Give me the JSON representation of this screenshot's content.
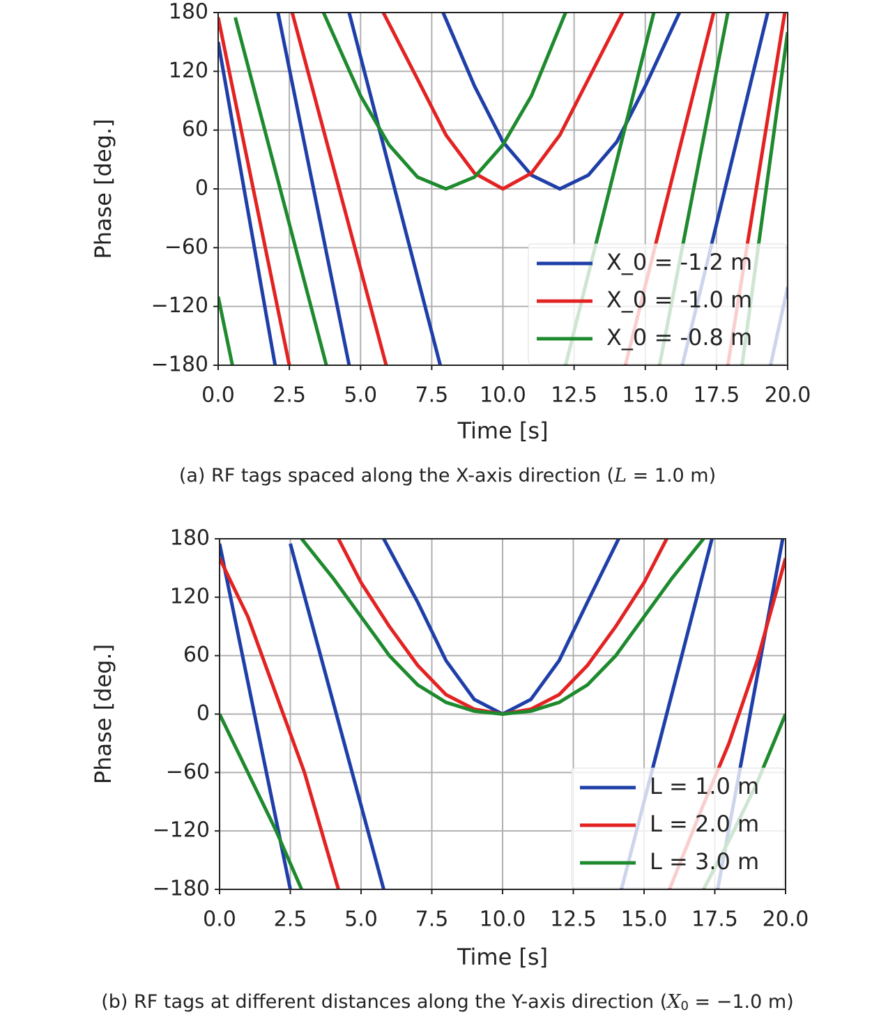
{
  "chart_data": [
    {
      "type": "line",
      "xlabel": "Time [s]",
      "ylabel": "Phase [deg.]",
      "caption": [
        "(a) RF tags spaced along the X-axis direction (",
        "L",
        " = 1.0 m)"
      ],
      "xlim": [
        0,
        20
      ],
      "ylim": [
        -180,
        180
      ],
      "xticks": [
        {
          "value": 0,
          "label": "0.0"
        },
        2.5,
        {
          "value": 5,
          "label": "5.0"
        },
        7.5,
        {
          "value": 10,
          "label": "10.0"
        },
        12.5,
        {
          "value": 15,
          "label": "15.0"
        },
        17.5,
        {
          "value": 20,
          "label": "20.0"
        }
      ],
      "yticks": [
        {
          "value": -180,
          "label": "−180"
        },
        {
          "value": -120,
          "label": "−120"
        },
        {
          "value": -60,
          "label": "−60"
        },
        0,
        60,
        120,
        180
      ],
      "grid": true,
      "legend": "lower right",
      "series": [
        {
          "name": "X_0 = -1.2 m",
          "color": "#1f3fa8",
          "x": [
            0,
            2.0,
            null,
            2.1,
            4.6,
            null,
            4.6,
            7.8,
            null,
            7.9,
            9,
            10,
            11,
            12,
            13,
            14,
            15,
            16.2,
            null,
            16.3,
            19.3,
            null,
            19.4,
            20
          ],
          "values": [
            150,
            -180,
            null,
            180,
            -180,
            null,
            180,
            -180,
            null,
            180,
            105,
            48,
            14,
            0,
            14,
            48,
            105,
            180,
            null,
            -180,
            180,
            null,
            -180,
            -100
          ]
        },
        {
          "name": "X_0 = -1.0 m",
          "color": "#e32222",
          "x": [
            0,
            2.5,
            null,
            2.6,
            5.9,
            null,
            5.8,
            7,
            8,
            9,
            10,
            11,
            12,
            13,
            14.2,
            null,
            14.3,
            17.4,
            null,
            17.9,
            19.9
          ],
          "values": [
            175,
            -180,
            null,
            180,
            -180,
            null,
            180,
            112,
            55,
            16,
            0,
            16,
            55,
            112,
            180,
            null,
            -180,
            180,
            null,
            -180,
            180
          ]
        },
        {
          "name": "X_0 = -0.8 m",
          "color": "#1e8a2e",
          "x": [
            0,
            0.5,
            null,
            0.6,
            3.8,
            null,
            3.7,
            5,
            6,
            7,
            8,
            9,
            10,
            11,
            12.2,
            null,
            12.2,
            15.3,
            null,
            15.5,
            17.9,
            null,
            18.4,
            20
          ],
          "values": [
            -110,
            -180,
            null,
            175,
            -180,
            null,
            180,
            95,
            45,
            12,
            0,
            12,
            45,
            95,
            180,
            null,
            -180,
            180,
            null,
            -180,
            180,
            null,
            -180,
            160
          ]
        }
      ]
    },
    {
      "type": "line",
      "xlabel": "Time [s]",
      "ylabel": "Phase [deg.]",
      "caption": [
        "(b) RF tags at different distances along the Y-axis direction (",
        "X",
        "0",
        " = −1.0 m)"
      ],
      "xlim": [
        0,
        20
      ],
      "ylim": [
        -180,
        180
      ],
      "xticks": [
        {
          "value": 0,
          "label": "0.0"
        },
        2.5,
        {
          "value": 5,
          "label": "5.0"
        },
        7.5,
        {
          "value": 10,
          "label": "10.0"
        },
        12.5,
        {
          "value": 15,
          "label": "15.0"
        },
        17.5,
        {
          "value": 20,
          "label": "20.0"
        }
      ],
      "yticks": [
        {
          "value": -180,
          "label": "−180"
        },
        {
          "value": -120,
          "label": "−120"
        },
        {
          "value": -60,
          "label": "−60"
        },
        0,
        60,
        120,
        180
      ],
      "grid": true,
      "legend": "lower right",
      "series": [
        {
          "name": "L = 1.0 m",
          "color": "#1f3fa8",
          "x": [
            0,
            2.5,
            null,
            2.5,
            5.8,
            null,
            5.8,
            7,
            8,
            9,
            10,
            11,
            12,
            13,
            14.1,
            null,
            14.2,
            17.4,
            null,
            17.6,
            19.9
          ],
          "values": [
            175,
            -180,
            null,
            175,
            -180,
            null,
            180,
            115,
            55,
            15,
            0,
            15,
            55,
            115,
            180,
            null,
            -180,
            180,
            null,
            -180,
            180
          ]
        },
        {
          "name": "L = 2.0 m",
          "color": "#e32222",
          "x": [
            0,
            1,
            2,
            3,
            4.2,
            null,
            4.2,
            5,
            6,
            7,
            8,
            9,
            10,
            11,
            12,
            13,
            14,
            15,
            15.8,
            null,
            15.9,
            17,
            18,
            19,
            20
          ],
          "values": [
            160,
            100,
            20,
            -60,
            -180,
            null,
            180,
            135,
            90,
            50,
            20,
            5,
            0,
            5,
            20,
            50,
            90,
            135,
            180,
            null,
            -180,
            -100,
            -30,
            55,
            160
          ]
        },
        {
          "name": "L = 3.0 m",
          "color": "#1e8a2e",
          "x": [
            0,
            1,
            2,
            2.9,
            null,
            2.9,
            4,
            5,
            6,
            7,
            8,
            9,
            10,
            11,
            12,
            13,
            14,
            15,
            16,
            17.1,
            null,
            17.1,
            18,
            19,
            20
          ],
          "values": [
            0,
            -60,
            -120,
            -180,
            null,
            180,
            140,
            100,
            60,
            30,
            12,
            3,
            0,
            3,
            12,
            30,
            60,
            100,
            140,
            180,
            null,
            -180,
            -130,
            -70,
            0
          ]
        }
      ]
    }
  ]
}
